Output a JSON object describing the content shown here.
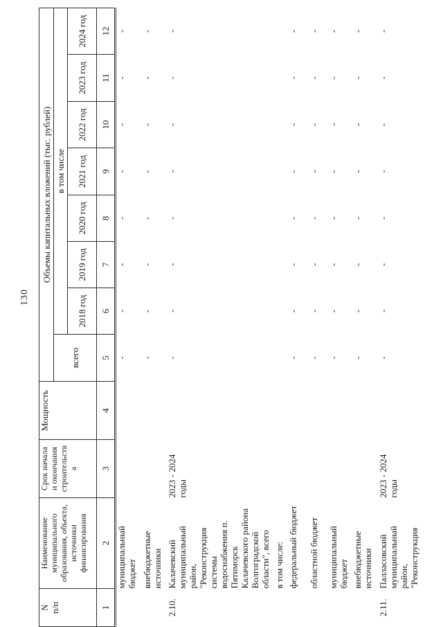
{
  "page": {
    "number": "130"
  },
  "table": {
    "header": {
      "col1": "N\nп/п",
      "col2": "Наименование\nмуниципального\nобразования, объекта,\nисточники\nфинансирования",
      "col3": "Срок начала\nи окончания\nстроительств\nа",
      "col4": "Мощность",
      "volumes": "Объемы капитальных вложений (тыс. рублей)",
      "total": "всего",
      "including": "в том числе",
      "years": [
        "2018 год",
        "2019 год",
        "2020 год",
        "2021 год",
        "2022 год",
        "2023 год",
        "2024 год"
      ],
      "col_numbers": [
        "1",
        "2",
        "3",
        "4",
        "5",
        "6",
        "7",
        "8",
        "9",
        "10",
        "11",
        "12"
      ]
    },
    "rows": [
      {
        "num": "",
        "label": "муниципальный\nбюджет",
        "term": "",
        "capacity": "",
        "values": [
          "-",
          "-",
          "-",
          "-",
          "-",
          "-",
          "-",
          "-"
        ]
      },
      {
        "num": "",
        "label": "внебюджетные\nисточники",
        "term": "",
        "capacity": "",
        "values": [
          "-",
          "-",
          "-",
          "-",
          "-",
          "-",
          "-",
          "-"
        ]
      },
      {
        "num": "2.10.",
        "label": "Калачевский\nмуниципальный\nрайон,\n\"Реконструкция\nсистемы\nводоснабжения п.\nПятиморск\nКалачевского района\nВолгоградской\nобласти\", всего",
        "term": "2023 - 2024\nгоды",
        "capacity": "",
        "values": [
          "-",
          "-",
          "-",
          "-",
          "-",
          "-",
          "-",
          "-"
        ]
      },
      {
        "num": "",
        "label": "в том числе:",
        "term": "",
        "capacity": "",
        "values": [
          "",
          "",
          "",
          "",
          "",
          "",
          "",
          ""
        ]
      },
      {
        "num": "",
        "label": "федеральный бюджет",
        "term": "",
        "capacity": "",
        "values": [
          "-",
          "-",
          "-",
          "-",
          "-",
          "-",
          "-",
          "-"
        ]
      },
      {
        "num": "",
        "label": "областной бюджет",
        "term": "",
        "capacity": "",
        "values": [
          "-",
          "-",
          "-",
          "-",
          "-",
          "-",
          "-",
          "-"
        ]
      },
      {
        "num": "",
        "label": "муниципальный\nбюджет",
        "term": "",
        "capacity": "",
        "values": [
          "-",
          "-",
          "-",
          "-",
          "-",
          "-",
          "-",
          "-"
        ]
      },
      {
        "num": "",
        "label": "внебюджетные\nисточники",
        "term": "",
        "capacity": "",
        "values": [
          "-",
          "-",
          "-",
          "-",
          "-",
          "-",
          "-",
          "-"
        ]
      },
      {
        "num": "2.11.",
        "label": "Палласовский\nмуниципальный\nрайон,\n\"Реконструкция",
        "term": "2023 - 2024\nгоды",
        "capacity": "",
        "values": [
          "-",
          "-",
          "-",
          "-",
          "-",
          "-",
          "-",
          "-"
        ]
      }
    ]
  }
}
